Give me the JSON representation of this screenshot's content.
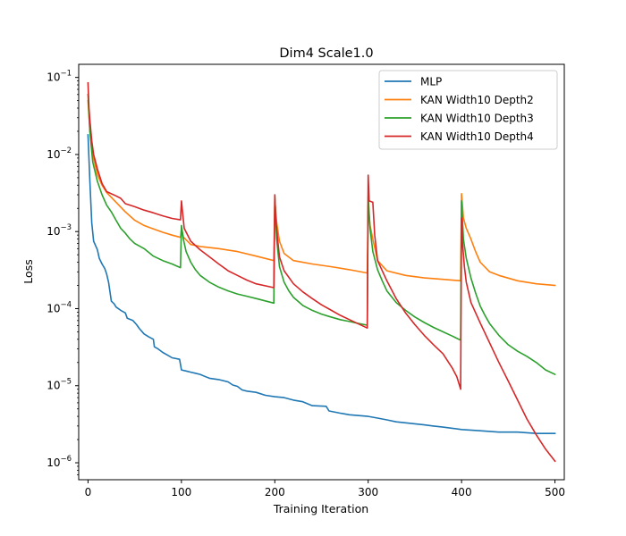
{
  "chart_data": {
    "type": "line",
    "title": "Dim4 Scale1.0",
    "xlabel": "Training Iteration",
    "ylabel": "Loss",
    "yscale": "log",
    "xlim": [
      -10,
      510
    ],
    "ylim_log10": [
      -6.22,
      -0.83
    ],
    "xticks": [
      0,
      100,
      200,
      300,
      400,
      500
    ],
    "yticks": [
      {
        "exp": -6,
        "base": "10",
        "sup": "−6"
      },
      {
        "exp": -5,
        "base": "10",
        "sup": "−5"
      },
      {
        "exp": -4,
        "base": "10",
        "sup": "−4"
      },
      {
        "exp": -3,
        "base": "10",
        "sup": "−3"
      },
      {
        "exp": -2,
        "base": "10",
        "sup": "−2"
      },
      {
        "exp": -1,
        "base": "10",
        "sup": "−1"
      }
    ],
    "legend_position": "upper right",
    "series": [
      {
        "name": "MLP",
        "color": "#1f77b4",
        "points": [
          [
            0,
            0.018
          ],
          [
            2,
            0.0045
          ],
          [
            4,
            0.0013
          ],
          [
            6,
            0.00075
          ],
          [
            10,
            0.00058
          ],
          [
            12,
            0.00045
          ],
          [
            15,
            0.00038
          ],
          [
            18,
            0.00033
          ],
          [
            20,
            0.00028
          ],
          [
            22,
            0.00022
          ],
          [
            25,
            0.000125
          ],
          [
            28,
            0.000115
          ],
          [
            30,
            0.000105
          ],
          [
            35,
            9.5e-05
          ],
          [
            40,
            8.8e-05
          ],
          [
            42,
            7.5e-05
          ],
          [
            48,
            7e-05
          ],
          [
            52,
            6.2e-05
          ],
          [
            55,
            5.5e-05
          ],
          [
            60,
            4.7e-05
          ],
          [
            65,
            4.3e-05
          ],
          [
            70,
            4e-05
          ],
          [
            71,
            3.2e-05
          ],
          [
            75,
            3e-05
          ],
          [
            80,
            2.7e-05
          ],
          [
            85,
            2.5e-05
          ],
          [
            90,
            2.3e-05
          ],
          [
            98,
            2.2e-05
          ],
          [
            100,
            1.6e-05
          ],
          [
            105,
            1.55e-05
          ],
          [
            110,
            1.5e-05
          ],
          [
            115,
            1.45e-05
          ],
          [
            120,
            1.4e-05
          ],
          [
            125,
            1.32e-05
          ],
          [
            130,
            1.25e-05
          ],
          [
            140,
            1.2e-05
          ],
          [
            150,
            1.12e-05
          ],
          [
            155,
            1.02e-05
          ],
          [
            160,
            9.8e-06
          ],
          [
            165,
            8.8e-06
          ],
          [
            170,
            8.5e-06
          ],
          [
            180,
            8.2e-06
          ],
          [
            190,
            7.5e-06
          ],
          [
            200,
            7.2e-06
          ],
          [
            210,
            7e-06
          ],
          [
            220,
            6.5e-06
          ],
          [
            230,
            6.2e-06
          ],
          [
            240,
            5.5e-06
          ],
          [
            255,
            5.4e-06
          ],
          [
            258,
            4.7e-06
          ],
          [
            270,
            4.4e-06
          ],
          [
            280,
            4.2e-06
          ],
          [
            290,
            4.1e-06
          ],
          [
            300,
            4e-06
          ],
          [
            310,
            3.8e-06
          ],
          [
            320,
            3.6e-06
          ],
          [
            330,
            3.4e-06
          ],
          [
            340,
            3.3e-06
          ],
          [
            350,
            3.2e-06
          ],
          [
            360,
            3.1e-06
          ],
          [
            370,
            3e-06
          ],
          [
            380,
            2.9e-06
          ],
          [
            390,
            2.8e-06
          ],
          [
            400,
            2.7e-06
          ],
          [
            420,
            2.6e-06
          ],
          [
            440,
            2.5e-06
          ],
          [
            460,
            2.5e-06
          ],
          [
            480,
            2.4e-06
          ],
          [
            500,
            2.4e-06
          ]
        ]
      },
      {
        "name": "KAN Width10 Depth2",
        "color": "#ff7f0e",
        "points": [
          [
            0,
            0.05
          ],
          [
            2,
            0.02
          ],
          [
            5,
            0.01
          ],
          [
            10,
            0.0055
          ],
          [
            15,
            0.004
          ],
          [
            20,
            0.0032
          ],
          [
            30,
            0.0024
          ],
          [
            40,
            0.0018
          ],
          [
            50,
            0.0014
          ],
          [
            60,
            0.0012
          ],
          [
            70,
            0.00108
          ],
          [
            80,
            0.00098
          ],
          [
            90,
            0.0009
          ],
          [
            99,
            0.00084
          ],
          [
            100,
            0.0011
          ],
          [
            102,
            0.00085
          ],
          [
            110,
            0.00068
          ],
          [
            120,
            0.00064
          ],
          [
            140,
            0.0006
          ],
          [
            160,
            0.00055
          ],
          [
            180,
            0.00048
          ],
          [
            199,
            0.00042
          ],
          [
            200,
            0.0025
          ],
          [
            202,
            0.0013
          ],
          [
            205,
            0.00075
          ],
          [
            210,
            0.00052
          ],
          [
            220,
            0.00042
          ],
          [
            240,
            0.00038
          ],
          [
            260,
            0.00035
          ],
          [
            280,
            0.00032
          ],
          [
            299,
            0.00029
          ],
          [
            300,
            0.0022
          ],
          [
            302,
            0.0012
          ],
          [
            305,
            0.0008
          ],
          [
            310,
            0.00042
          ],
          [
            320,
            0.00031
          ],
          [
            340,
            0.00027
          ],
          [
            360,
            0.00025
          ],
          [
            380,
            0.00024
          ],
          [
            399,
            0.00023
          ],
          [
            400,
            0.0031
          ],
          [
            402,
            0.0015
          ],
          [
            405,
            0.0011
          ],
          [
            410,
            0.0008
          ],
          [
            415,
            0.00055
          ],
          [
            420,
            0.0004
          ],
          [
            430,
            0.0003
          ],
          [
            440,
            0.00027
          ],
          [
            460,
            0.00023
          ],
          [
            480,
            0.00021
          ],
          [
            500,
            0.0002
          ]
        ]
      },
      {
        "name": "KAN Width10 Depth3",
        "color": "#2ca02c",
        "points": [
          [
            0,
            0.06
          ],
          [
            2,
            0.02
          ],
          [
            5,
            0.008
          ],
          [
            10,
            0.0045
          ],
          [
            15,
            0.003
          ],
          [
            20,
            0.0022
          ],
          [
            25,
            0.0018
          ],
          [
            30,
            0.0014
          ],
          [
            35,
            0.0011
          ],
          [
            40,
            0.00095
          ],
          [
            45,
            0.0008
          ],
          [
            50,
            0.0007
          ],
          [
            60,
            0.0006
          ],
          [
            70,
            0.00048
          ],
          [
            80,
            0.00042
          ],
          [
            90,
            0.00038
          ],
          [
            99,
            0.00034
          ],
          [
            100,
            0.0012
          ],
          [
            102,
            0.0008
          ],
          [
            105,
            0.00055
          ],
          [
            110,
            0.0004
          ],
          [
            115,
            0.00032
          ],
          [
            120,
            0.00027
          ],
          [
            130,
            0.00022
          ],
          [
            140,
            0.00019
          ],
          [
            150,
            0.00017
          ],
          [
            160,
            0.000155
          ],
          [
            170,
            0.000145
          ],
          [
            180,
            0.000135
          ],
          [
            199,
            0.000118
          ],
          [
            200,
            0.0029
          ],
          [
            202,
            0.0008
          ],
          [
            205,
            0.00035
          ],
          [
            210,
            0.00022
          ],
          [
            215,
            0.00017
          ],
          [
            220,
            0.00014
          ],
          [
            230,
            0.00011
          ],
          [
            240,
            9.5e-05
          ],
          [
            250,
            8.5e-05
          ],
          [
            260,
            7.8e-05
          ],
          [
            270,
            7.2e-05
          ],
          [
            280,
            6.8e-05
          ],
          [
            290,
            6.4e-05
          ],
          [
            299,
            6.1e-05
          ],
          [
            300,
            0.0029
          ],
          [
            302,
            0.0011
          ],
          [
            305,
            0.00055
          ],
          [
            310,
            0.00032
          ],
          [
            315,
            0.00023
          ],
          [
            320,
            0.00017
          ],
          [
            330,
            0.00012
          ],
          [
            340,
            9.5e-05
          ],
          [
            350,
            7.8e-05
          ],
          [
            360,
            6.6e-05
          ],
          [
            370,
            5.7e-05
          ],
          [
            380,
            5e-05
          ],
          [
            390,
            4.4e-05
          ],
          [
            399,
            3.9e-05
          ],
          [
            400,
            0.0025
          ],
          [
            402,
            0.0008
          ],
          [
            405,
            0.00045
          ],
          [
            410,
            0.00025
          ],
          [
            415,
            0.00016
          ],
          [
            420,
            0.000108
          ],
          [
            425,
            8.2e-05
          ],
          [
            430,
            6.4e-05
          ],
          [
            440,
            4.5e-05
          ],
          [
            450,
            3.4e-05
          ],
          [
            460,
            2.8e-05
          ],
          [
            470,
            2.4e-05
          ],
          [
            480,
            2e-05
          ],
          [
            490,
            1.6e-05
          ],
          [
            500,
            1.4e-05
          ]
        ]
      },
      {
        "name": "KAN Width10 Depth4",
        "color": "#d62728",
        "points": [
          [
            0,
            0.085
          ],
          [
            1,
            0.04
          ],
          [
            2,
            0.028
          ],
          [
            4,
            0.015
          ],
          [
            6,
            0.01
          ],
          [
            10,
            0.0065
          ],
          [
            15,
            0.0042
          ],
          [
            20,
            0.0033
          ],
          [
            30,
            0.0029
          ],
          [
            35,
            0.0027
          ],
          [
            40,
            0.0023
          ],
          [
            50,
            0.0021
          ],
          [
            60,
            0.0019
          ],
          [
            70,
            0.00175
          ],
          [
            80,
            0.0016
          ],
          [
            90,
            0.00148
          ],
          [
            99,
            0.00142
          ],
          [
            100,
            0.0025
          ],
          [
            101,
            0.0019
          ],
          [
            103,
            0.0011
          ],
          [
            110,
            0.00075
          ],
          [
            120,
            0.00058
          ],
          [
            130,
            0.00047
          ],
          [
            140,
            0.00038
          ],
          [
            150,
            0.00031
          ],
          [
            160,
            0.00027
          ],
          [
            170,
            0.000235
          ],
          [
            180,
            0.00021
          ],
          [
            199,
            0.000187
          ],
          [
            200,
            0.003
          ],
          [
            201,
            0.0015
          ],
          [
            203,
            0.0008
          ],
          [
            205,
            0.00047
          ],
          [
            210,
            0.00031
          ],
          [
            220,
            0.00021
          ],
          [
            230,
            0.000165
          ],
          [
            240,
            0.000135
          ],
          [
            250,
            0.000112
          ],
          [
            260,
            9.6e-05
          ],
          [
            270,
            8.2e-05
          ],
          [
            280,
            7.2e-05
          ],
          [
            290,
            6.3e-05
          ],
          [
            299,
            5.6e-05
          ],
          [
            300,
            0.0054
          ],
          [
            301,
            0.0025
          ],
          [
            305,
            0.0024
          ],
          [
            307,
            0.0009
          ],
          [
            310,
            0.00042
          ],
          [
            320,
            0.00023
          ],
          [
            330,
            0.000135
          ],
          [
            340,
            8.8e-05
          ],
          [
            350,
            6.2e-05
          ],
          [
            360,
            4.5e-05
          ],
          [
            370,
            3.4e-05
          ],
          [
            380,
            2.6e-05
          ],
          [
            390,
            1.7e-05
          ],
          [
            395,
            1.3e-05
          ],
          [
            399,
            9e-06
          ],
          [
            400,
            0.0015
          ],
          [
            401,
            0.0007
          ],
          [
            403,
            0.00035
          ],
          [
            405,
            0.00022
          ],
          [
            410,
            0.00012
          ],
          [
            420,
            6.5e-05
          ],
          [
            430,
            3.6e-05
          ],
          [
            440,
            2e-05
          ],
          [
            450,
            1.15e-05
          ],
          [
            460,
            6.5e-06
          ],
          [
            470,
            3.7e-06
          ],
          [
            480,
            2.3e-06
          ],
          [
            490,
            1.5e-06
          ],
          [
            500,
            1.05e-06
          ]
        ]
      }
    ]
  }
}
